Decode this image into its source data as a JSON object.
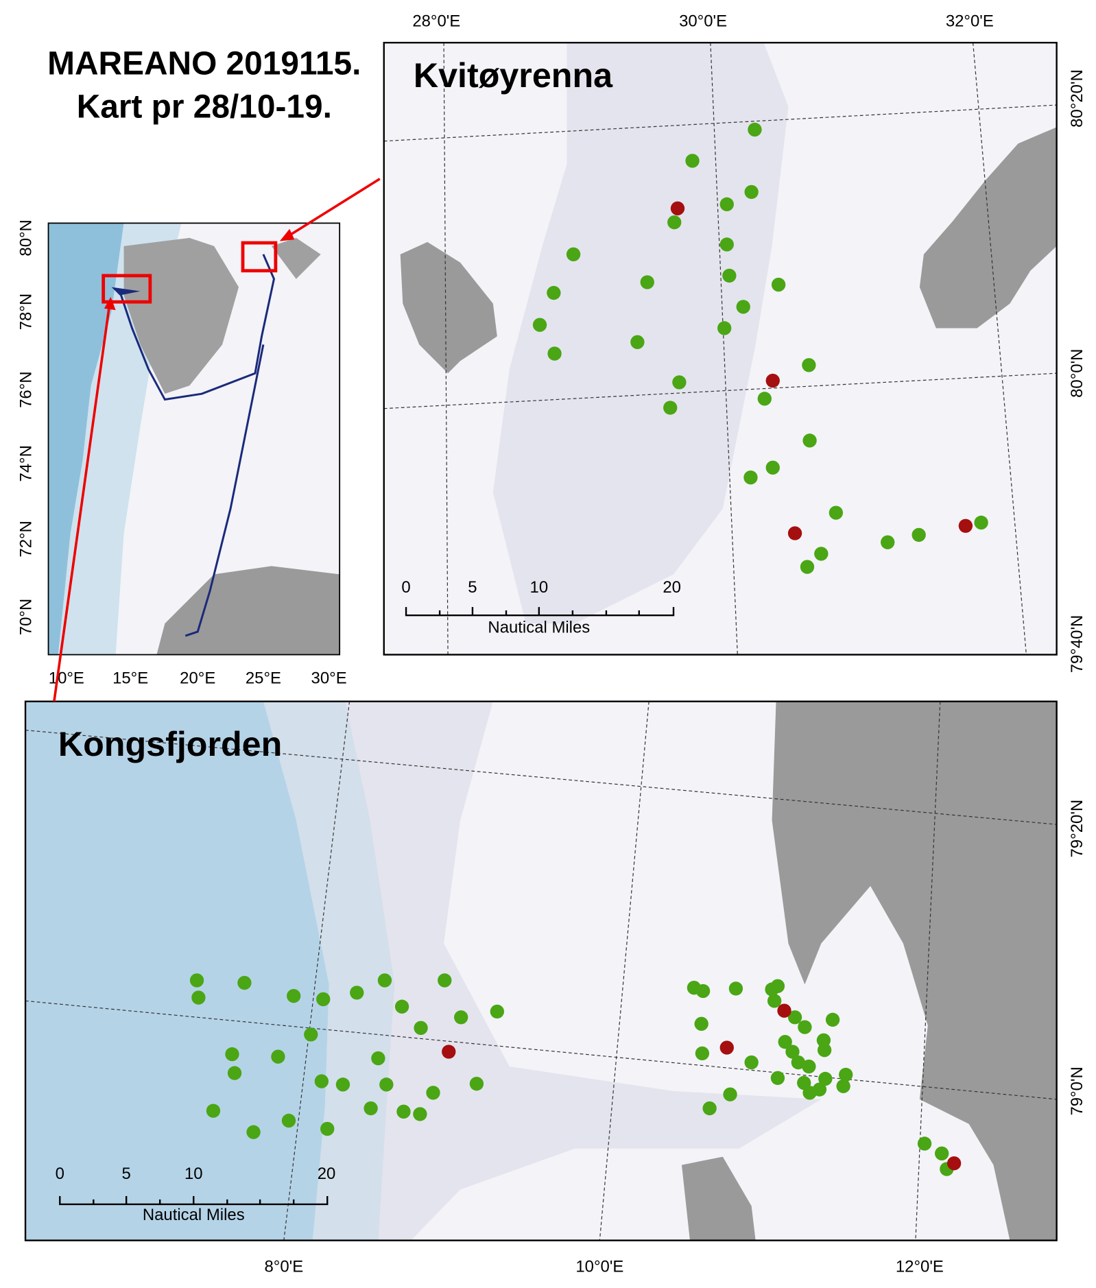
{
  "header": {
    "title": "MAREANO 2019115.",
    "subtitle": "Kart pr 28/10-19."
  },
  "overview": {
    "lat_labels": [
      "80°N",
      "78°N",
      "76°N",
      "74°N",
      "72°N",
      "70°N"
    ],
    "lon_labels": [
      "10°E",
      "15°E",
      "20°E",
      "25°E",
      "30°E"
    ]
  },
  "kvitoyrenna": {
    "label": "Kvitøyrenna",
    "lon_labels": [
      "28°0'E",
      "30°0'E",
      "32°0'E"
    ],
    "lat_labels": [
      "80°20'N",
      "80°0'N",
      "79°40'N"
    ],
    "scale_bar": {
      "ticks": [
        0,
        5,
        10,
        20
      ],
      "unit": "Nautical Miles"
    }
  },
  "kongsfjorden": {
    "label": "Kongsfjorden",
    "lon_labels": [
      "8°0'E",
      "10°0'E",
      "12°0'E"
    ],
    "lat_labels": [
      "79°20'N",
      "79°0'N"
    ],
    "scale_bar": {
      "ticks": [
        0,
        5,
        10,
        20
      ],
      "unit": "Nautical Miles"
    }
  }
}
